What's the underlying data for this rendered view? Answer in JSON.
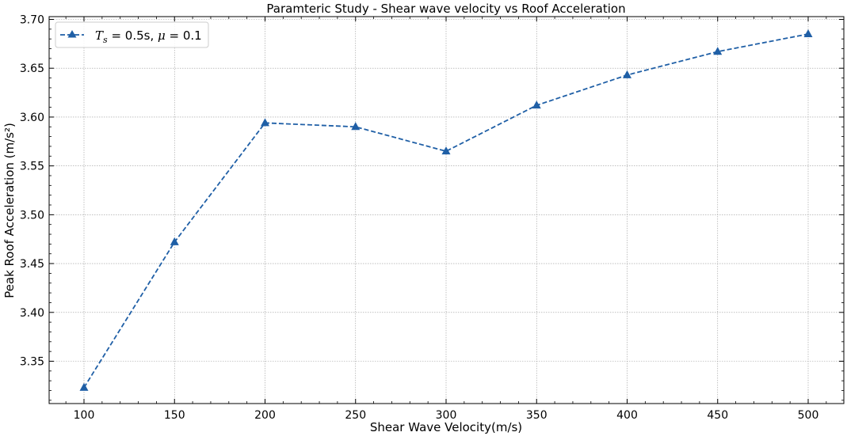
{
  "chart_data": {
    "type": "line",
    "title": "Paramteric Study - Shear wave velocity vs Roof Acceleration",
    "xlabel": "Shear Wave Velocity(m/s)",
    "ylabel": "Peak Roof Acceleration (m/s²)",
    "xlim": [
      80,
      520
    ],
    "ylim": [
      3.3,
      3.7
    ],
    "xticks": [
      100,
      150,
      200,
      250,
      300,
      350,
      400,
      450,
      500
    ],
    "yticks": [
      3.35,
      3.4,
      3.45,
      3.5,
      3.55,
      3.6,
      3.65,
      3.7
    ],
    "xtick_labels": [
      "100",
      "150",
      "200",
      "250",
      "300",
      "350",
      "400",
      "450",
      "500"
    ],
    "ytick_labels": [
      "3.35",
      "3.40",
      "3.45",
      "3.50",
      "3.55",
      "3.60",
      "3.65",
      "3.70"
    ],
    "grid": true,
    "legend_position": "top-left",
    "series": [
      {
        "name": "T_s = 0.5s, μ = 0.1",
        "color": "#1f5fa6",
        "linestyle": "dashed",
        "marker": "triangle-up",
        "x": [
          100,
          150,
          200,
          250,
          300,
          350,
          400,
          450,
          500
        ],
        "y": [
          3.323,
          3.472,
          3.594,
          3.59,
          3.565,
          3.612,
          3.643,
          3.667,
          3.685
        ]
      }
    ]
  },
  "legend": {
    "t": "T",
    "sub": "s",
    "eq1": " = 0.5s, ",
    "mu": "μ",
    "eq2": " = 0.1"
  }
}
